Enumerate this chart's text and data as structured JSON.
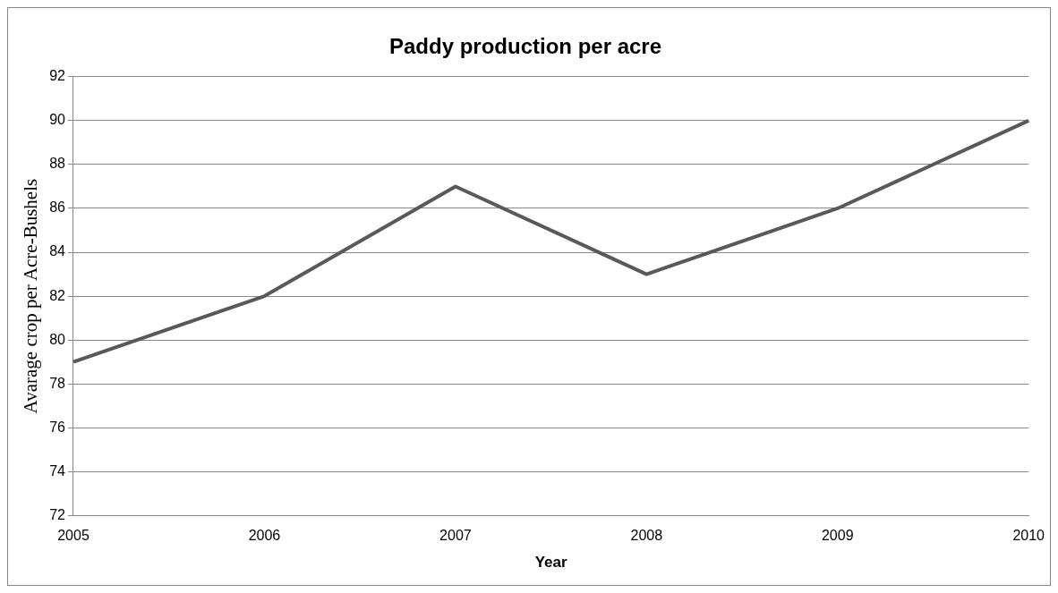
{
  "chart_data": {
    "type": "line",
    "title": "Paddy production per acre",
    "xlabel": "Year",
    "ylabel": "Avarage crop per Acre-Bushels",
    "categories": [
      "2005",
      "2006",
      "2007",
      "2008",
      "2009",
      "2010"
    ],
    "series": [
      {
        "color": "#595959",
        "values": [
          79,
          82,
          87,
          83,
          86,
          90
        ]
      }
    ],
    "ylim": [
      72,
      92
    ],
    "yticks": [
      72,
      74,
      76,
      78,
      80,
      82,
      84,
      86,
      88,
      90,
      92
    ],
    "grid": "y",
    "legend": false,
    "marker": "none",
    "line_style": "solid"
  }
}
